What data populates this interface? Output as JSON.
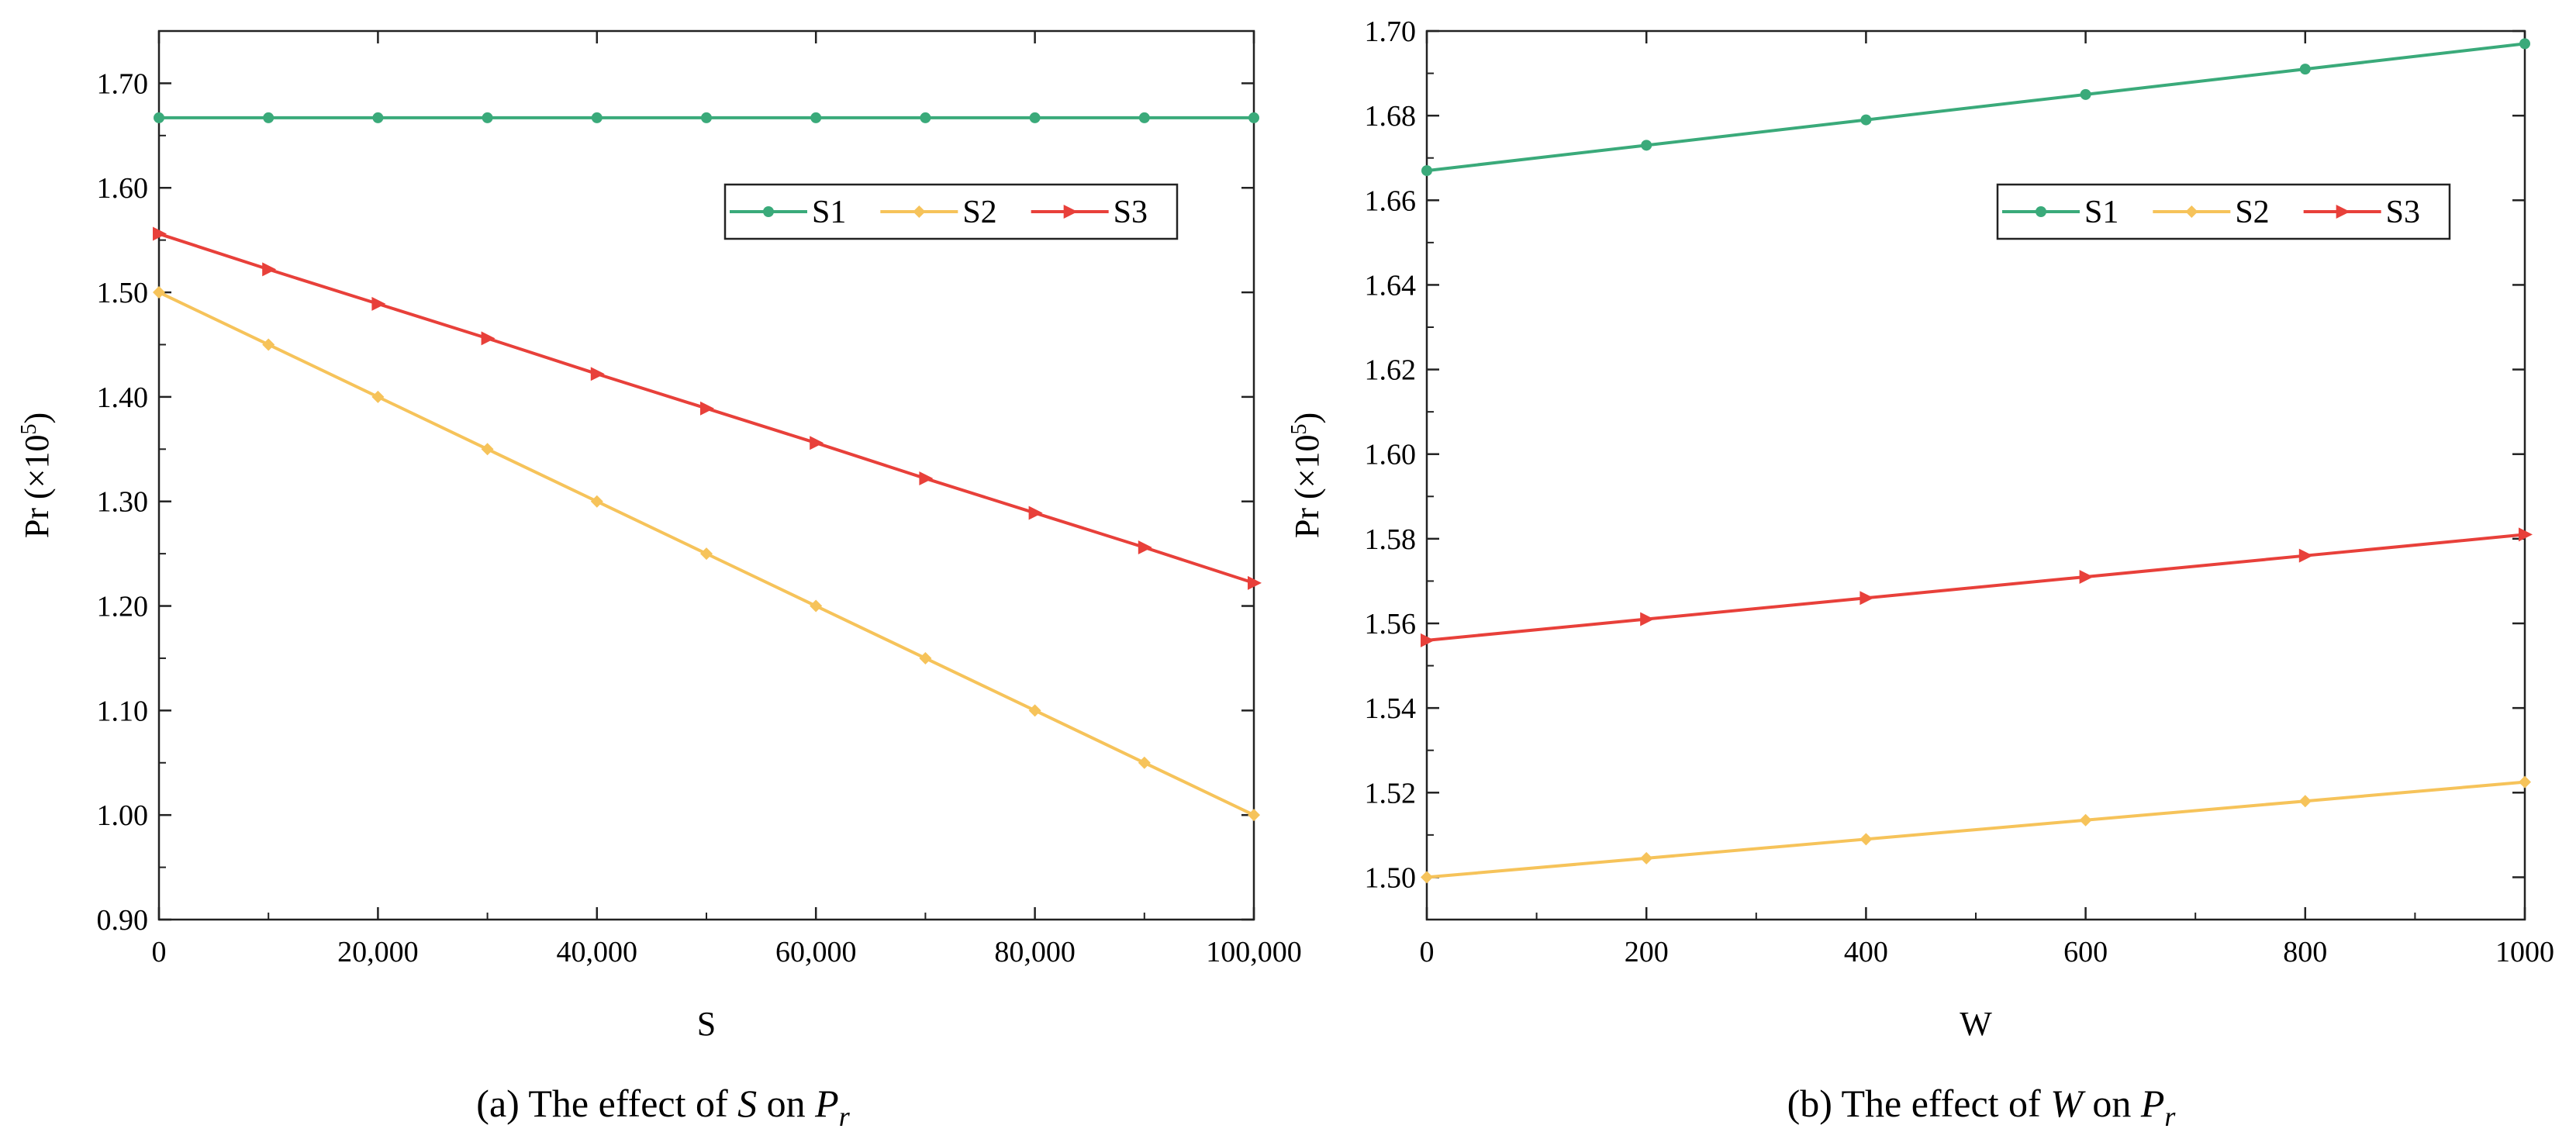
{
  "colors": {
    "S1": "#3aaa7a",
    "S2": "#f6c35a",
    "S3": "#e8403a"
  },
  "chart_data": [
    {
      "type": "line",
      "caption": {
        "prefix": "(a) The effect of ",
        "var": "S",
        "mid": " on ",
        "p": "P",
        "sub": "r"
      },
      "xlabel": "S",
      "ylabel": {
        "main": "Pr (×10",
        "sup": "5",
        "close": ")"
      },
      "xlim": [
        0,
        100000
      ],
      "ylim": [
        0.9,
        1.75
      ],
      "xticks": [
        0,
        20000,
        40000,
        60000,
        80000,
        100000
      ],
      "xtick_labels": [
        "0",
        "20,000",
        "40,000",
        "60,000",
        "80,000",
        "100,000"
      ],
      "yticks": [
        0.9,
        1.0,
        1.1,
        1.2,
        1.3,
        1.4,
        1.5,
        1.6,
        1.7
      ],
      "ytick_labels": [
        "0.90",
        "1.00",
        "1.10",
        "1.20",
        "1.30",
        "1.40",
        "1.50",
        "1.60",
        "1.70"
      ],
      "x": [
        0,
        10000,
        20000,
        30000,
        40000,
        50000,
        60000,
        70000,
        80000,
        90000,
        100000
      ],
      "series": [
        {
          "name": "S1",
          "marker": "circle",
          "values": [
            1.667,
            1.667,
            1.667,
            1.667,
            1.667,
            1.667,
            1.667,
            1.667,
            1.667,
            1.667,
            1.667
          ]
        },
        {
          "name": "S2",
          "marker": "diamond",
          "values": [
            1.5,
            1.45,
            1.4,
            1.35,
            1.3,
            1.25,
            1.2,
            1.15,
            1.1,
            1.05,
            1.0
          ]
        },
        {
          "name": "S3",
          "marker": "triangle",
          "values": [
            1.556,
            1.522,
            1.489,
            1.456,
            1.422,
            1.389,
            1.356,
            1.322,
            1.289,
            1.256,
            1.222
          ]
        }
      ],
      "legend": [
        "S1",
        "S2",
        "S3"
      ]
    },
    {
      "type": "line",
      "caption": {
        "prefix": "(b) The effect of ",
        "var": "W",
        "mid": " on ",
        "p": "P",
        "sub": "r"
      },
      "xlabel": "W",
      "ylabel": {
        "main": "Pr (×10",
        "sup": "5",
        "close": ")"
      },
      "xlim": [
        0,
        1000
      ],
      "ylim": [
        1.49,
        1.7
      ],
      "xticks": [
        0,
        200,
        400,
        600,
        800,
        1000
      ],
      "xtick_labels": [
        "0",
        "200",
        "400",
        "600",
        "800",
        "1000"
      ],
      "yticks": [
        1.5,
        1.52,
        1.54,
        1.56,
        1.58,
        1.6,
        1.62,
        1.64,
        1.66,
        1.68,
        1.7
      ],
      "ytick_labels": [
        "1.50",
        "1.52",
        "1.54",
        "1.56",
        "1.58",
        "1.60",
        "1.62",
        "1.64",
        "1.66",
        "1.68",
        "1.70"
      ],
      "x": [
        0,
        200,
        400,
        600,
        800,
        1000
      ],
      "series": [
        {
          "name": "S1",
          "marker": "circle",
          "values": [
            1.667,
            1.673,
            1.679,
            1.685,
            1.691,
            1.697
          ]
        },
        {
          "name": "S2",
          "marker": "diamond",
          "values": [
            1.5,
            1.5045,
            1.509,
            1.5135,
            1.518,
            1.5225
          ]
        },
        {
          "name": "S3",
          "marker": "triangle",
          "values": [
            1.556,
            1.561,
            1.566,
            1.571,
            1.576,
            1.581
          ]
        }
      ],
      "legend": [
        "S1",
        "S2",
        "S3"
      ]
    }
  ]
}
